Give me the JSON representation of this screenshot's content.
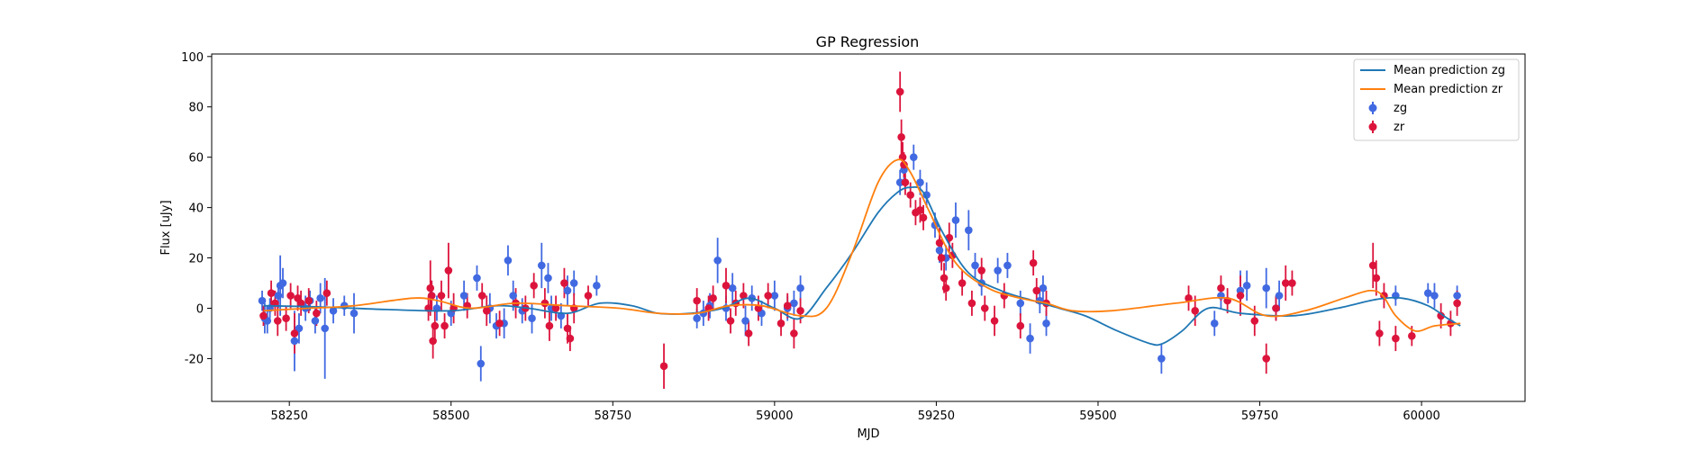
{
  "chart_data": {
    "type": "scatter",
    "title": "GP Regression",
    "xlabel": "MJD",
    "ylabel": "Flux [uJy]",
    "xlim": [
      58130,
      60160
    ],
    "ylim": [
      -37,
      101
    ],
    "xticks": [
      58250,
      58500,
      58750,
      59000,
      59250,
      59500,
      59750,
      60000
    ],
    "yticks": [
      -20,
      0,
      20,
      40,
      60,
      80,
      100
    ],
    "grid": false,
    "legend_position": "top-right",
    "colors": {
      "zg_line": "#1f77b4",
      "zr_line": "#ff7f0e",
      "zg_points": "#4169e1",
      "zr_points": "#dc143c"
    },
    "lines": [
      {
        "name": "Mean prediction zg",
        "x": [
          58210,
          58300,
          58400,
          58500,
          58570,
          58620,
          58680,
          58730,
          58780,
          58820,
          58870,
          58920,
          58960,
          59000,
          59040,
          59080,
          59120,
          59160,
          59190,
          59210,
          59230,
          59260,
          59300,
          59350,
          59400,
          59440,
          59480,
          59530,
          59580,
          59600,
          59630,
          59670,
          59720,
          59800,
          59870,
          59930,
          59970,
          60010,
          60040,
          60060
        ],
        "y": [
          1,
          0.5,
          -0.5,
          -1,
          1,
          0,
          -2,
          2,
          1,
          -2,
          -2,
          0,
          4,
          0,
          -4,
          8,
          22,
          38,
          46,
          48,
          46,
          30,
          14,
          7,
          3,
          0,
          -3,
          -9,
          -14,
          -14,
          -9,
          0,
          -2,
          -3,
          0,
          3.5,
          4,
          1,
          -4,
          -7
        ]
      },
      {
        "name": "Mean prediction zr",
        "x": [
          58210,
          58280,
          58350,
          58440,
          58480,
          58530,
          58600,
          58680,
          58760,
          58820,
          58880,
          58930,
          58980,
          59040,
          59080,
          59120,
          59160,
          59190,
          59210,
          59240,
          59280,
          59330,
          59380,
          59420,
          59460,
          59520,
          59620,
          59700,
          59760,
          59820,
          59880,
          59920,
          59940,
          59960,
          59990,
          60020,
          60060
        ],
        "y": [
          -1,
          0,
          1,
          4,
          3,
          0,
          2,
          1,
          0,
          -2,
          -2,
          1,
          1,
          -3,
          0,
          22,
          50,
          59,
          54,
          38,
          18,
          8,
          4,
          2,
          -1,
          -1,
          2,
          4,
          -3,
          -1,
          4,
          7,
          5,
          -3,
          -9,
          -7,
          -6
        ]
      }
    ],
    "series": [
      {
        "name": "zg",
        "x": [
          58208,
          58212,
          58216,
          58220,
          58233,
          58236,
          58240,
          58258,
          58265,
          58275,
          58282,
          58290,
          58298,
          58305,
          58318,
          58335,
          58350,
          58470,
          58478,
          58500,
          58520,
          58540,
          58546,
          58560,
          58570,
          58582,
          58588,
          58596,
          58610,
          58625,
          58640,
          58650,
          58655,
          58670,
          58680,
          58690,
          58725,
          58880,
          58890,
          58900,
          58912,
          58925,
          58935,
          58955,
          58965,
          58980,
          59000,
          59020,
          59030,
          59040,
          59194,
          59200,
          59215,
          59225,
          59235,
          59248,
          59255,
          59265,
          59280,
          59300,
          59310,
          59320,
          59345,
          59360,
          59380,
          59395,
          59410,
          59415,
          59420,
          59598,
          59680,
          59690,
          59720,
          59730,
          59760,
          59775,
          59780,
          59960,
          60010,
          60020,
          60055
        ],
        "y": [
          3,
          -4,
          -5,
          0,
          5,
          9,
          10,
          -13,
          -8,
          0,
          3,
          -5,
          4,
          -8,
          -1,
          1,
          -2,
          5,
          0,
          -2,
          5,
          12,
          -22,
          0,
          -7,
          -6,
          19,
          5,
          -1,
          -4,
          17,
          12,
          0,
          -3,
          7,
          10,
          9,
          -4,
          -2,
          1,
          19,
          0,
          8,
          -5,
          4,
          -2,
          5,
          0,
          2,
          8,
          50,
          55,
          60,
          50,
          45,
          33,
          23,
          20,
          35,
          31,
          17,
          10,
          15,
          17,
          2,
          -12,
          3,
          8,
          -6,
          -20,
          -6,
          5,
          7,
          9,
          8,
          0,
          5,
          5,
          6,
          5,
          5
        ],
        "yerr": [
          4,
          6,
          5,
          4,
          5,
          12,
          6,
          12,
          6,
          5,
          4,
          5,
          6,
          20,
          5,
          4,
          8,
          6,
          5,
          5,
          6,
          5,
          7,
          6,
          5,
          6,
          6,
          6,
          5,
          6,
          9,
          6,
          5,
          5,
          6,
          5,
          4,
          4,
          5,
          5,
          9,
          5,
          6,
          6,
          5,
          5,
          6,
          5,
          5,
          5,
          5,
          5,
          5,
          5,
          5,
          5,
          5,
          5,
          7,
          8,
          5,
          5,
          5,
          5,
          5,
          6,
          5,
          5,
          5,
          6,
          5,
          5,
          8,
          6,
          8,
          5,
          6,
          4,
          4,
          5,
          4
        ]
      },
      {
        "name": "zr",
        "x": [
          58210,
          58222,
          58228,
          58232,
          58245,
          58252,
          58258,
          58263,
          58268,
          58280,
          58292,
          58308,
          58465,
          58468,
          58470,
          58472,
          58475,
          58485,
          58490,
          58496,
          58504,
          58525,
          58548,
          58555,
          58575,
          58600,
          58615,
          58628,
          58645,
          58652,
          58662,
          58675,
          58680,
          58684,
          58690,
          58712,
          58829,
          58880,
          58898,
          58905,
          58925,
          58932,
          58940,
          58952,
          58960,
          58975,
          58990,
          59010,
          59020,
          59030,
          59040,
          59194,
          59196,
          59198,
          59200,
          59202,
          59210,
          59218,
          59225,
          59230,
          59255,
          59258,
          59262,
          59265,
          59270,
          59275,
          59290,
          59305,
          59320,
          59325,
          59340,
          59355,
          59380,
          59400,
          59405,
          59420,
          59640,
          59650,
          59690,
          59700,
          59720,
          59742,
          59760,
          59775,
          59790,
          59800,
          59925,
          59930,
          59935,
          59942,
          59960,
          59985,
          60030,
          60045,
          60055
        ],
        "y": [
          -3,
          6,
          2,
          -5,
          -4,
          5,
          -10,
          4,
          2,
          3,
          -2,
          6,
          0,
          8,
          5,
          -13,
          -7,
          5,
          -7,
          15,
          0,
          1,
          5,
          -1,
          -6,
          2,
          0,
          9,
          2,
          -7,
          0,
          10,
          -8,
          -12,
          0,
          5,
          -23,
          3,
          0,
          4,
          9,
          -5,
          2,
          5,
          -10,
          0,
          5,
          -6,
          1,
          -10,
          -1,
          86,
          68,
          60,
          57,
          50,
          45,
          38,
          39,
          36,
          26,
          20,
          12,
          8,
          28,
          21,
          10,
          2,
          15,
          0,
          -5,
          5,
          -7,
          18,
          7,
          2,
          4,
          -1,
          8,
          3,
          5,
          -5,
          -20,
          0,
          10,
          10,
          17,
          12,
          -10,
          5,
          -12,
          -11,
          -3,
          -6,
          2
        ],
        "yerr": [
          4,
          5,
          5,
          6,
          5,
          5,
          8,
          5,
          5,
          5,
          5,
          5,
          5,
          11,
          6,
          7,
          6,
          6,
          5,
          11,
          6,
          5,
          5,
          6,
          5,
          6,
          5,
          5,
          6,
          6,
          5,
          6,
          6,
          5,
          6,
          4,
          9,
          5,
          5,
          5,
          7,
          5,
          5,
          5,
          5,
          5,
          5,
          5,
          5,
          6,
          5,
          8,
          7,
          6,
          5,
          5,
          5,
          5,
          5,
          5,
          6,
          5,
          6,
          5,
          6,
          5,
          5,
          5,
          5,
          5,
          6,
          5,
          5,
          5,
          5,
          5,
          5,
          6,
          5,
          5,
          8,
          6,
          6,
          5,
          7,
          5,
          9,
          7,
          5,
          5,
          5,
          4,
          5,
          5,
          5
        ]
      }
    ]
  }
}
